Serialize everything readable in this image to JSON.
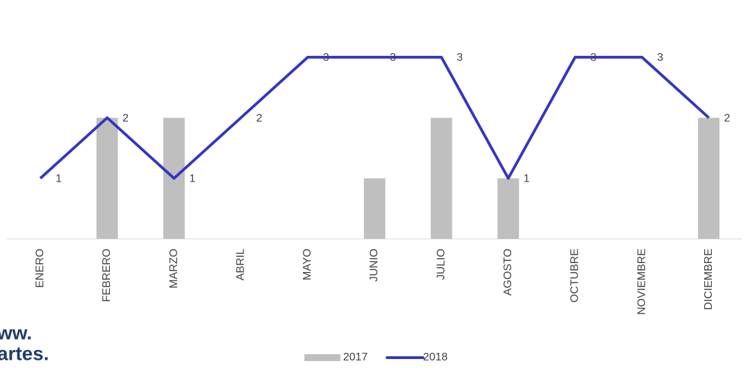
{
  "chart_data": {
    "type": "bar_line",
    "categories": [
      "ENERO",
      "FEBRERO",
      "MARZO",
      "ABRIL",
      "MAYO",
      "JUNIO",
      "JULIO",
      "AGOSTO",
      "OCTUBRE",
      "NOVIEMBRE",
      "DICIEMBRE"
    ],
    "series": [
      {
        "name": "2017",
        "type": "bar",
        "color": "#bfbfbf",
        "values": [
          0,
          2,
          2,
          0,
          0,
          1,
          2,
          1,
          0,
          0,
          2
        ]
      },
      {
        "name": "2018",
        "type": "line",
        "color": "#3535c0",
        "values": [
          1,
          2,
          1,
          2,
          3,
          3,
          3,
          1,
          3,
          3,
          2
        ],
        "data_labels": true
      }
    ],
    "ylim": [
      0,
      3.5
    ],
    "legend": "bottom",
    "watermark": [
      "ww.",
      "artes."
    ]
  }
}
